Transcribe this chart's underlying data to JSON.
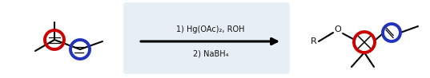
{
  "bg_color": "#ffffff",
  "reaction_box_color": "#e8eef5",
  "arrow_text_line1": "1) Hg(OAc)₂, ROH",
  "arrow_text_line2": "2) NaBH₄",
  "arrow_color": "#000000",
  "red_circle_color": "#cc0000",
  "blue_circle_color": "#2233bb",
  "line_color": "#000000",
  "text_color": "#111111",
  "font_size": 7.0,
  "lw_mol": 1.5,
  "lw_circle": 2.8,
  "lw_arrow": 2.2
}
